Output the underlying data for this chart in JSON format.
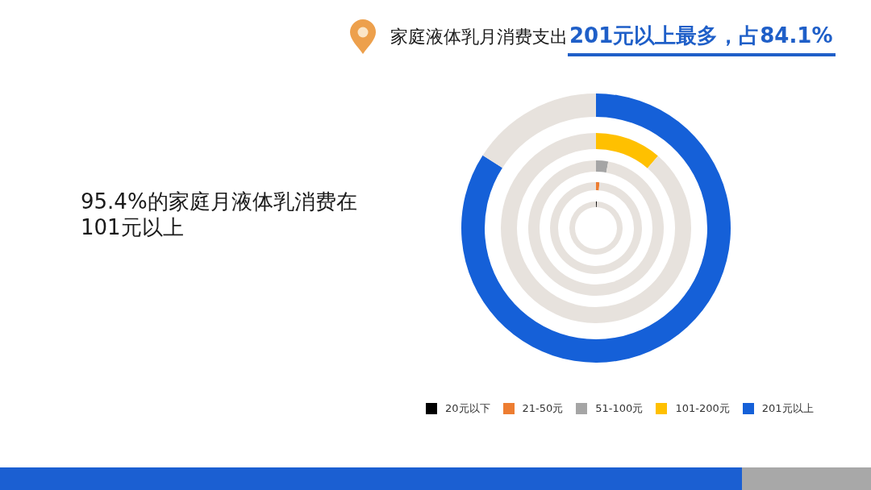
{
  "chart_data": [
    {
      "type": "donut",
      "categories": [
        "20元以下",
        null
      ],
      "values": [
        0.5,
        99.5
      ],
      "colors": [
        "#000000",
        "#e7e2dd"
      ],
      "legend": "bottom"
    },
    {
      "type": "donut",
      "categories": [
        "21-50元",
        null
      ],
      "values": [
        1.2,
        98.8
      ],
      "colors": [
        "#ed7d31",
        "#e7e2dd"
      ],
      "legend": "bottom"
    },
    {
      "type": "donut",
      "categories": [
        "51-100元",
        null
      ],
      "values": [
        2.9,
        97.1
      ],
      "colors": [
        "#a5a5a5",
        "#e7e2dd"
      ],
      "legend": "bottom"
    },
    {
      "type": "donut",
      "categories": [
        "101-200元",
        null
      ],
      "values": [
        11.3,
        88.7
      ],
      "colors": [
        "#ffc000",
        "#e7e2dd"
      ],
      "legend": "bottom"
    },
    {
      "type": "donut",
      "title": "家庭液体乳月消费支出",
      "subtitle": "201元以上最多，占84.1%",
      "annotations": [
        "95.4%的家庭月液体乳消费在101元以上"
      ],
      "categories": [
        "201元以上",
        null
      ],
      "values": [
        84.1,
        15.9
      ],
      "colors": [
        "#1560d8",
        "#e7e2dd"
      ],
      "legend": "bottom"
    }
  ]
}
